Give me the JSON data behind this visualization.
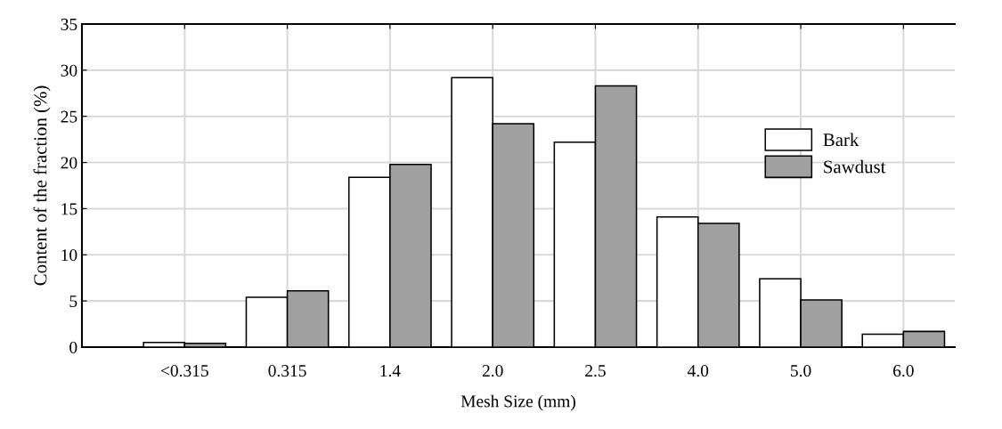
{
  "chart_data": {
    "type": "bar",
    "xlabel": "Mesh Size (mm)",
    "ylabel": "Content of the fraction (%)",
    "categories": [
      "<0.315",
      "0.315",
      "1.4",
      "2.0",
      "2.5",
      "4.0",
      "5.0",
      "6.0"
    ],
    "series": [
      {
        "name": "Bark",
        "color": "#ffffff",
        "values": [
          0.5,
          5.4,
          18.4,
          29.2,
          22.2,
          14.1,
          7.4,
          1.4
        ]
      },
      {
        "name": "Sawdust",
        "color": "#a0a0a0",
        "values": [
          0.4,
          6.1,
          19.8,
          24.2,
          28.3,
          13.4,
          5.1,
          1.7
        ]
      }
    ],
    "ylim": [
      0,
      35
    ],
    "yticks": [
      0,
      5,
      10,
      15,
      20,
      25,
      30,
      35
    ],
    "grid": true,
    "legend": "right"
  }
}
